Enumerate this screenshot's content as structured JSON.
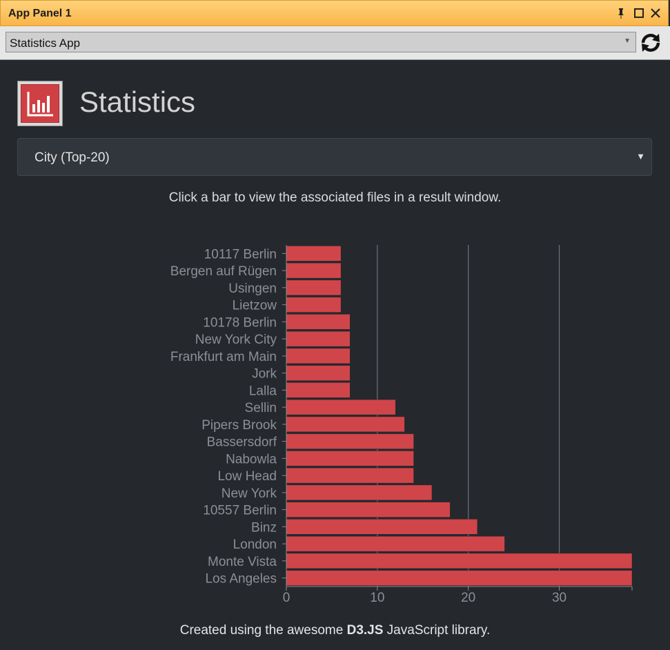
{
  "window": {
    "title": "App Panel 1"
  },
  "toolbar": {
    "app_select_value": "Statistics App"
  },
  "header": {
    "title": "Statistics"
  },
  "category_select": {
    "value": "City (Top-20)"
  },
  "hint": "Click a bar to view the associated files in a result window.",
  "footer": {
    "prefix": "Created using the awesome ",
    "highlight": "D3.JS",
    "suffix": " JavaScript library."
  },
  "colors": {
    "bar": "#d0454a",
    "background": "#25282d"
  },
  "chart_data": {
    "type": "bar",
    "orientation": "horizontal",
    "categories": [
      "10117 Berlin",
      "Bergen auf Rügen",
      "Usingen",
      "Lietzow",
      "10178 Berlin",
      "New York City",
      "Frankfurt am Main",
      "Jork",
      "Lalla",
      "Sellin",
      "Pipers Brook",
      "Bassersdorf",
      "Nabowla",
      "Low Head",
      "New York",
      "10557 Berlin",
      "Binz",
      "London",
      "Monte Vista",
      "Los Angeles"
    ],
    "values": [
      6,
      6,
      6,
      6,
      7,
      7,
      7,
      7,
      7,
      12,
      13,
      14,
      14,
      14,
      16,
      18,
      21,
      24,
      38,
      38
    ],
    "xlim": [
      0,
      38
    ],
    "xticks": [
      0,
      10,
      20,
      30
    ],
    "grid": true
  }
}
